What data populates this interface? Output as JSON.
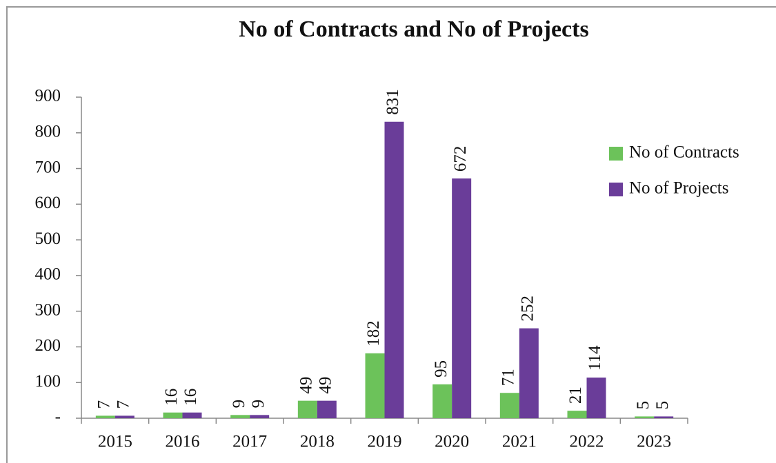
{
  "chart_data": {
    "type": "bar",
    "title": "No of Contracts and No of Projects",
    "categories": [
      "2015",
      "2016",
      "2017",
      "2018",
      "2019",
      "2020",
      "2021",
      "2022",
      "2023"
    ],
    "series": [
      {
        "name": "No of Contracts",
        "color": "#6cc25a",
        "values": [
          7,
          16,
          9,
          49,
          182,
          95,
          71,
          21,
          5
        ]
      },
      {
        "name": "No of Projects",
        "color": "#6a3d99",
        "values": [
          7,
          16,
          9,
          49,
          831,
          672,
          252,
          114,
          5
        ]
      }
    ],
    "ylim": [
      0,
      900
    ],
    "yticks": [
      {
        "value": 0,
        "label": "-"
      },
      100,
      200,
      300,
      400,
      500,
      600,
      700,
      800,
      900
    ],
    "legend": "right"
  }
}
